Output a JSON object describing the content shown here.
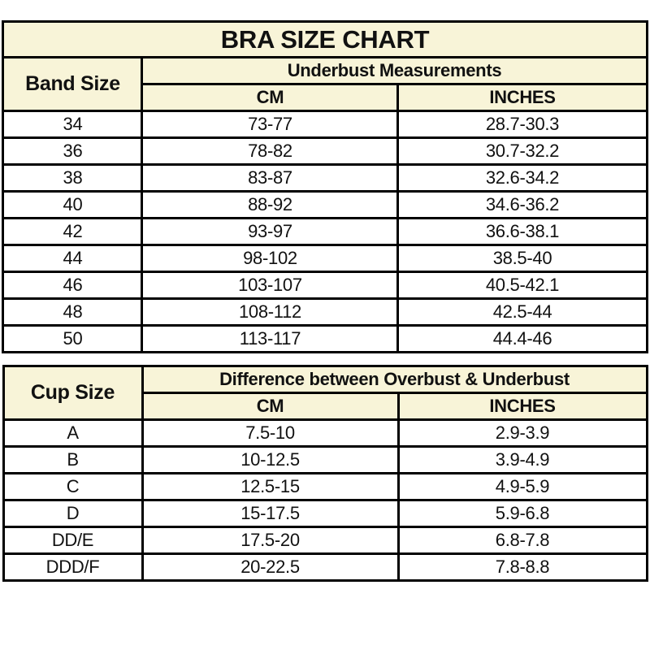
{
  "colors": {
    "header_bg": "#F8F4D8",
    "row_bg": "#FFFFFF",
    "border_color": "#000000",
    "text_color": "#111111"
  },
  "chart_data": [
    {
      "type": "table",
      "title": "BRA SIZE CHART",
      "corner_header": "Band Size",
      "group_header": "Underbust Measurements",
      "col_headers": [
        "CM",
        "INCHES"
      ],
      "rows": [
        [
          "34",
          "73-77",
          "28.7-30.3"
        ],
        [
          "36",
          "78-82",
          "30.7-32.2"
        ],
        [
          "38",
          "83-87",
          "32.6-34.2"
        ],
        [
          "40",
          "88-92",
          "34.6-36.2"
        ],
        [
          "42",
          "93-97",
          "36.6-38.1"
        ],
        [
          "44",
          "98-102",
          "38.5-40"
        ],
        [
          "46",
          "103-107",
          "40.5-42.1"
        ],
        [
          "48",
          "108-112",
          "42.5-44"
        ],
        [
          "50",
          "113-117",
          "44.4-46"
        ]
      ]
    },
    {
      "type": "table",
      "title": "",
      "corner_header": "Cup Size",
      "group_header": "Difference between Overbust & Underbust",
      "col_headers": [
        "CM",
        "INCHES"
      ],
      "rows": [
        [
          "A",
          "7.5-10",
          "2.9-3.9"
        ],
        [
          "B",
          "10-12.5",
          "3.9-4.9"
        ],
        [
          "C",
          "12.5-15",
          "4.9-5.9"
        ],
        [
          "D",
          "15-17.5",
          "5.9-6.8"
        ],
        [
          "DD/E",
          "17.5-20",
          "6.8-7.8"
        ],
        [
          "DDD/F",
          "20-22.5",
          "7.8-8.8"
        ]
      ]
    }
  ]
}
